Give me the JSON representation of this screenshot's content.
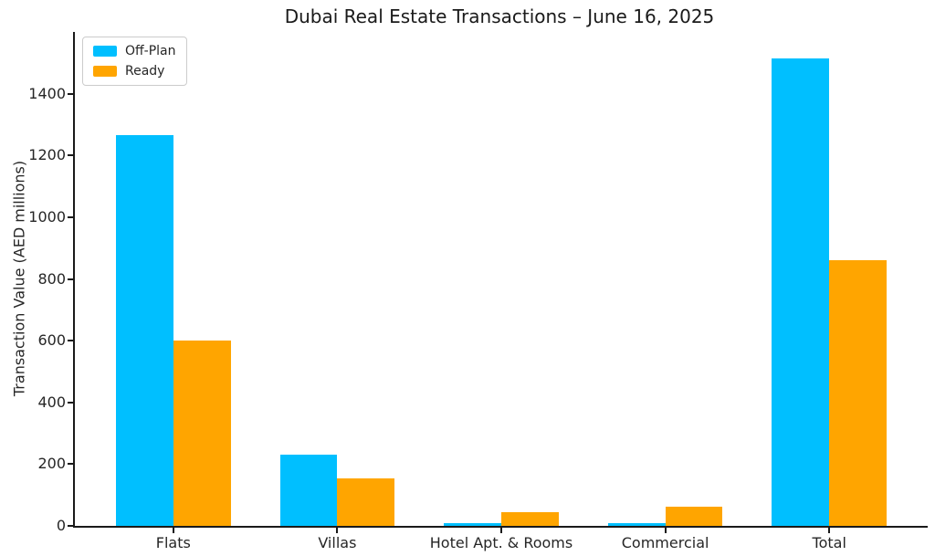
{
  "figure": {
    "title": "Dubai Real Estate Transactions – June 16, 2025"
  },
  "chart_data": {
    "type": "bar",
    "title": "Dubai Real Estate Transactions – June 16, 2025",
    "categories": [
      "Flats",
      "Villas",
      "Hotel Apt. & Rooms",
      "Commercial",
      "Total"
    ],
    "series": [
      {
        "name": "Off-Plan",
        "color": "#00BFFF",
        "values": [
          1265,
          232,
          8,
          10,
          1515
        ]
      },
      {
        "name": "Ready",
        "color": "#FFA500",
        "values": [
          600,
          155,
          45,
          62,
          862
        ]
      }
    ],
    "xlabel": "",
    "ylabel": "Transaction Value (AED millions)",
    "ylim": [
      0,
      1600
    ],
    "yticks": [
      0,
      200,
      400,
      600,
      800,
      1000,
      1200,
      1400
    ],
    "grid": false,
    "legend_position": "upper left",
    "bar_width_fraction": 0.35,
    "x_padding": 0.6
  }
}
